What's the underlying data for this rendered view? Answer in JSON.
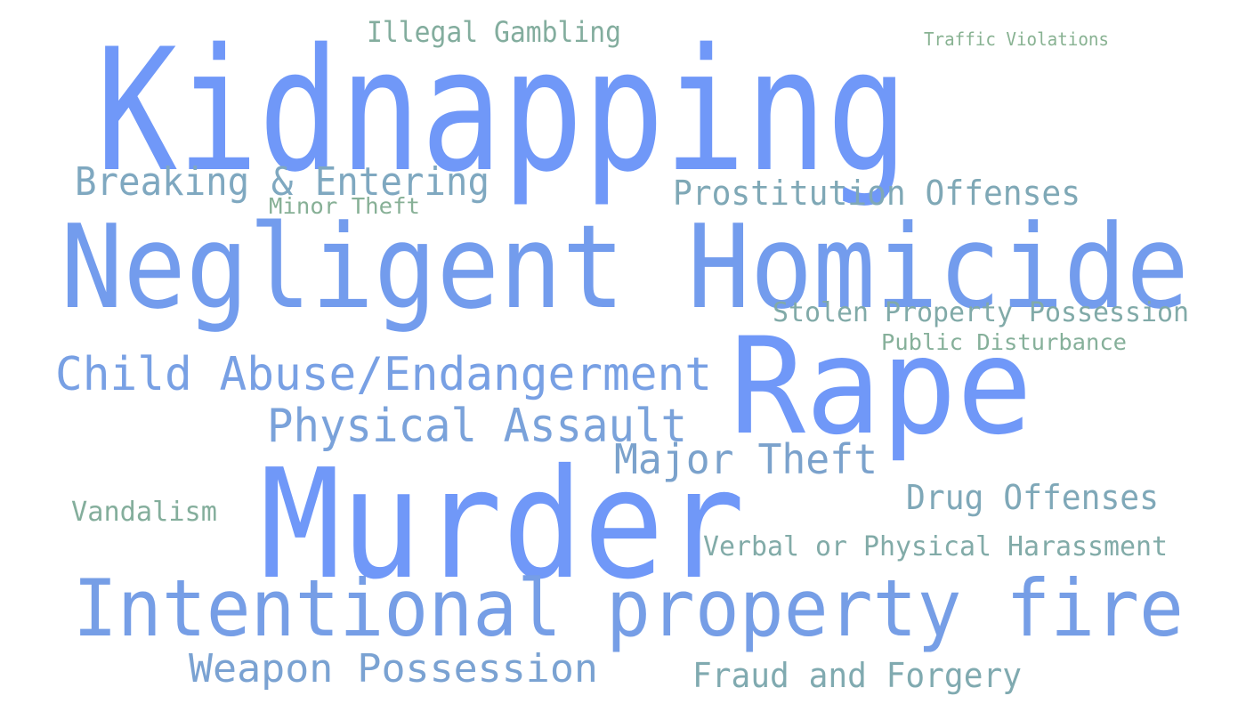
{
  "words": [
    {
      "text": "Kidnapping",
      "color": "#7098f8"
    },
    {
      "text": "Negligent Homicide",
      "color": "#739ced"
    },
    {
      "text": "Rape",
      "color": "#7098f8"
    },
    {
      "text": "Murder",
      "color": "#7098f8"
    },
    {
      "text": "Intentional property fire",
      "color": "#769ee6"
    },
    {
      "text": "Child Abuse/Endangerment",
      "color": "#78a0e4"
    },
    {
      "text": "Physical Assault",
      "color": "#7aa2da"
    },
    {
      "text": "Major Theft",
      "color": "#7ba2cc"
    },
    {
      "text": "Weapon Possession",
      "color": "#7aa2d2"
    },
    {
      "text": "Breaking & Entering",
      "color": "#7fa8c0"
    },
    {
      "text": "Prostitution Offenses",
      "color": "#7fa8b6"
    },
    {
      "text": "Drug Offenses",
      "color": "#7fa8b8"
    },
    {
      "text": "Fraud and Forgery",
      "color": "#80aab0"
    },
    {
      "text": "Stolen Property Possession",
      "color": "#81aaa8"
    },
    {
      "text": "Verbal or Physical Harassment",
      "color": "#82aba8"
    },
    {
      "text": "Illegal Gambling",
      "color": "#83ad9e"
    },
    {
      "text": "Vandalism",
      "color": "#84ae9c"
    },
    {
      "text": "Public Disturbance",
      "color": "#86b09a"
    },
    {
      "text": "Minor Theft",
      "color": "#87b096"
    },
    {
      "text": "Traffic Violations",
      "color": "#88b292"
    }
  ]
}
